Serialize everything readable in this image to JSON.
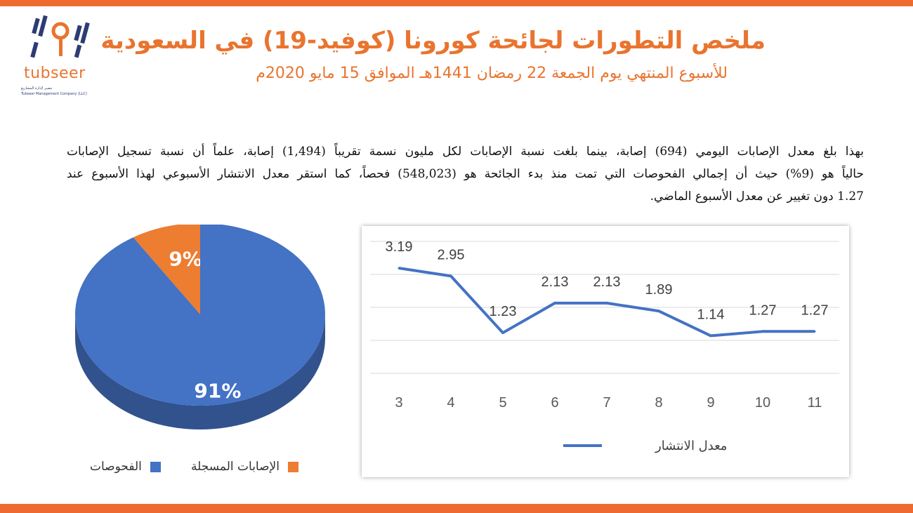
{
  "header": {
    "title": "ملخص التطورات لجائحة كورونا (كوفيد-19) في السعودية",
    "subtitle": "للأسبوع المنتهي يوم الجمعة 22 رمضان 1441هـ الموافق 15 مايو 2020م"
  },
  "logo": {
    "brand": "tubseer",
    "tagline": "تبصير لإدارة المشاريع",
    "company": "Tubseer Management Company (LLC)"
  },
  "summary": {
    "lines": [
      "بهذا بلغ معدل الإصابات اليومي (694) إصابة، بينما بلغت نسبة الإصابات لكل مليون نسمة تقريباً (1,494) إصابة، علماً أن نسبة تسجيل الإصابات",
      "حالياً هو (9%) حيث أن إجمالي الفحوصات التي تمت منذ بدء الجائحة هو (548,023) فحصاً، كما استقر معدل الانتشار الأسبوعي لهذا الأسبوع عند",
      "1.27 دون تغيير عن معدل الأسبوع الماضي."
    ]
  },
  "colors": {
    "accent": "#ee6b2f",
    "pie_blue": "#4472c4",
    "pie_orange": "#ed7d31",
    "line": "#4472c4"
  },
  "chart_data": [
    {
      "type": "pie",
      "slices": [
        {
          "name": "الفحوصات",
          "value": 91,
          "label": "91%",
          "color": "#4472c4"
        },
        {
          "name": "الإصابات المسجلة",
          "value": 9,
          "label": "9%",
          "color": "#ed7d31"
        }
      ],
      "legend": [
        "الإصابات المسجلة",
        "الفحوصات"
      ],
      "legend_position": "bottom"
    },
    {
      "type": "line",
      "x": [
        3,
        4,
        5,
        6,
        7,
        8,
        9,
        10,
        11
      ],
      "series": [
        {
          "name": "معدل الانتشار",
          "values": [
            3.19,
            2.95,
            1.23,
            2.13,
            2.13,
            1.89,
            1.14,
            1.27,
            1.27
          ],
          "labels": [
            "3.19",
            "2.95",
            "1.23",
            "2.13",
            "2.13",
            "1.89",
            "1.14",
            "1.27",
            "1.27"
          ]
        }
      ],
      "ylim": [
        0,
        4
      ],
      "grid": true,
      "legend_position": "bottom"
    }
  ]
}
